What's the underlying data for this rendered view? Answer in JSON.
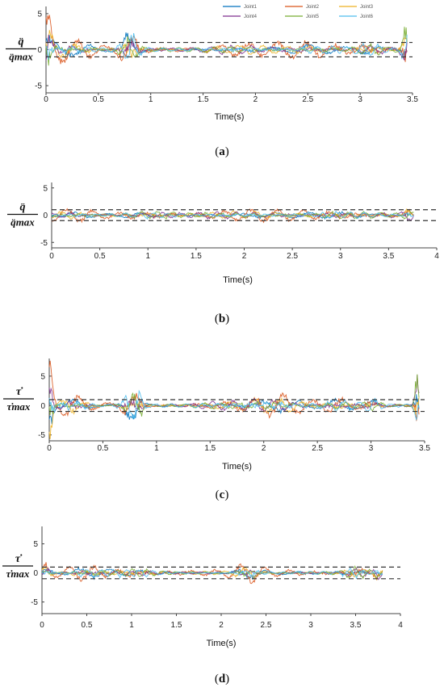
{
  "figure_type": "multi-panel line plot of normalized joint signals",
  "colors": {
    "Joint1": "#0072BD",
    "Joint2": "#D95319",
    "Joint3": "#EDB120",
    "Joint4": "#7E2F8E",
    "Joint5": "#77AC30",
    "Joint6": "#4DBEEE",
    "bounds": "#333333",
    "axes": "#444444"
  },
  "legend": [
    "Joint1",
    "Joint2",
    "Joint3",
    "Joint4",
    "Joint5",
    "Joint6"
  ],
  "chart_data": [
    {
      "panel": "(a)",
      "type": "line",
      "xlabel": "Time(s)",
      "ylabel": {
        "numerator": "q̈",
        "denominator": "q̈max"
      },
      "xlim": [
        0,
        3.5
      ],
      "ylim": [
        -6,
        6
      ],
      "xticks": [
        0,
        0.5,
        1,
        1.5,
        2,
        2.5,
        3,
        3.5
      ],
      "yticks": [
        -5,
        0,
        5
      ],
      "bounds": [
        -1,
        1
      ],
      "grid": false,
      "legend_position": "top-right",
      "series_names": [
        "Joint1",
        "Joint2",
        "Joint3",
        "Joint4",
        "Joint5",
        "Joint6"
      ]
    },
    {
      "panel": "(b)",
      "type": "line",
      "xlabel": "Time(s)",
      "ylabel": {
        "numerator": "q̈",
        "denominator": "q̈max"
      },
      "xlim": [
        0,
        4
      ],
      "ylim": [
        -6,
        6
      ],
      "xticks": [
        0,
        0.5,
        1,
        1.5,
        2,
        2.5,
        3,
        3.5,
        4
      ],
      "yticks": [
        -5,
        0,
        5
      ],
      "bounds": [
        -1,
        1
      ],
      "grid": false,
      "series_names": [
        "Joint1",
        "Joint2",
        "Joint3",
        "Joint4",
        "Joint5",
        "Joint6"
      ]
    },
    {
      "panel": "(c)",
      "type": "line",
      "xlabel": "Time(s)",
      "ylabel": {
        "numerator": "τ̇",
        "denominator": "τ̇max"
      },
      "xlim": [
        0,
        3.5
      ],
      "ylim": [
        -6,
        8
      ],
      "xticks": [
        0,
        0.5,
        1,
        1.5,
        2,
        2.5,
        3,
        3.5
      ],
      "yticks": [
        -5,
        0,
        5
      ],
      "bounds": [
        -1,
        1
      ],
      "grid": false,
      "series_names": [
        "Joint1",
        "Joint2",
        "Joint3",
        "Joint4",
        "Joint5",
        "Joint6"
      ]
    },
    {
      "panel": "(d)",
      "type": "line",
      "xlabel": "Time(s)",
      "ylabel": {
        "numerator": "τ̇",
        "denominator": "τ̇max"
      },
      "xlim": [
        0,
        4
      ],
      "ylim": [
        -7,
        8
      ],
      "xticks": [
        0,
        0.5,
        1,
        1.5,
        2,
        2.5,
        3,
        3.5,
        4
      ],
      "yticks": [
        -5,
        0,
        5
      ],
      "bounds": [
        -1,
        1
      ],
      "grid": false,
      "series_names": [
        "Joint1",
        "Joint2",
        "Joint3",
        "Joint4",
        "Joint5",
        "Joint6"
      ]
    }
  ]
}
